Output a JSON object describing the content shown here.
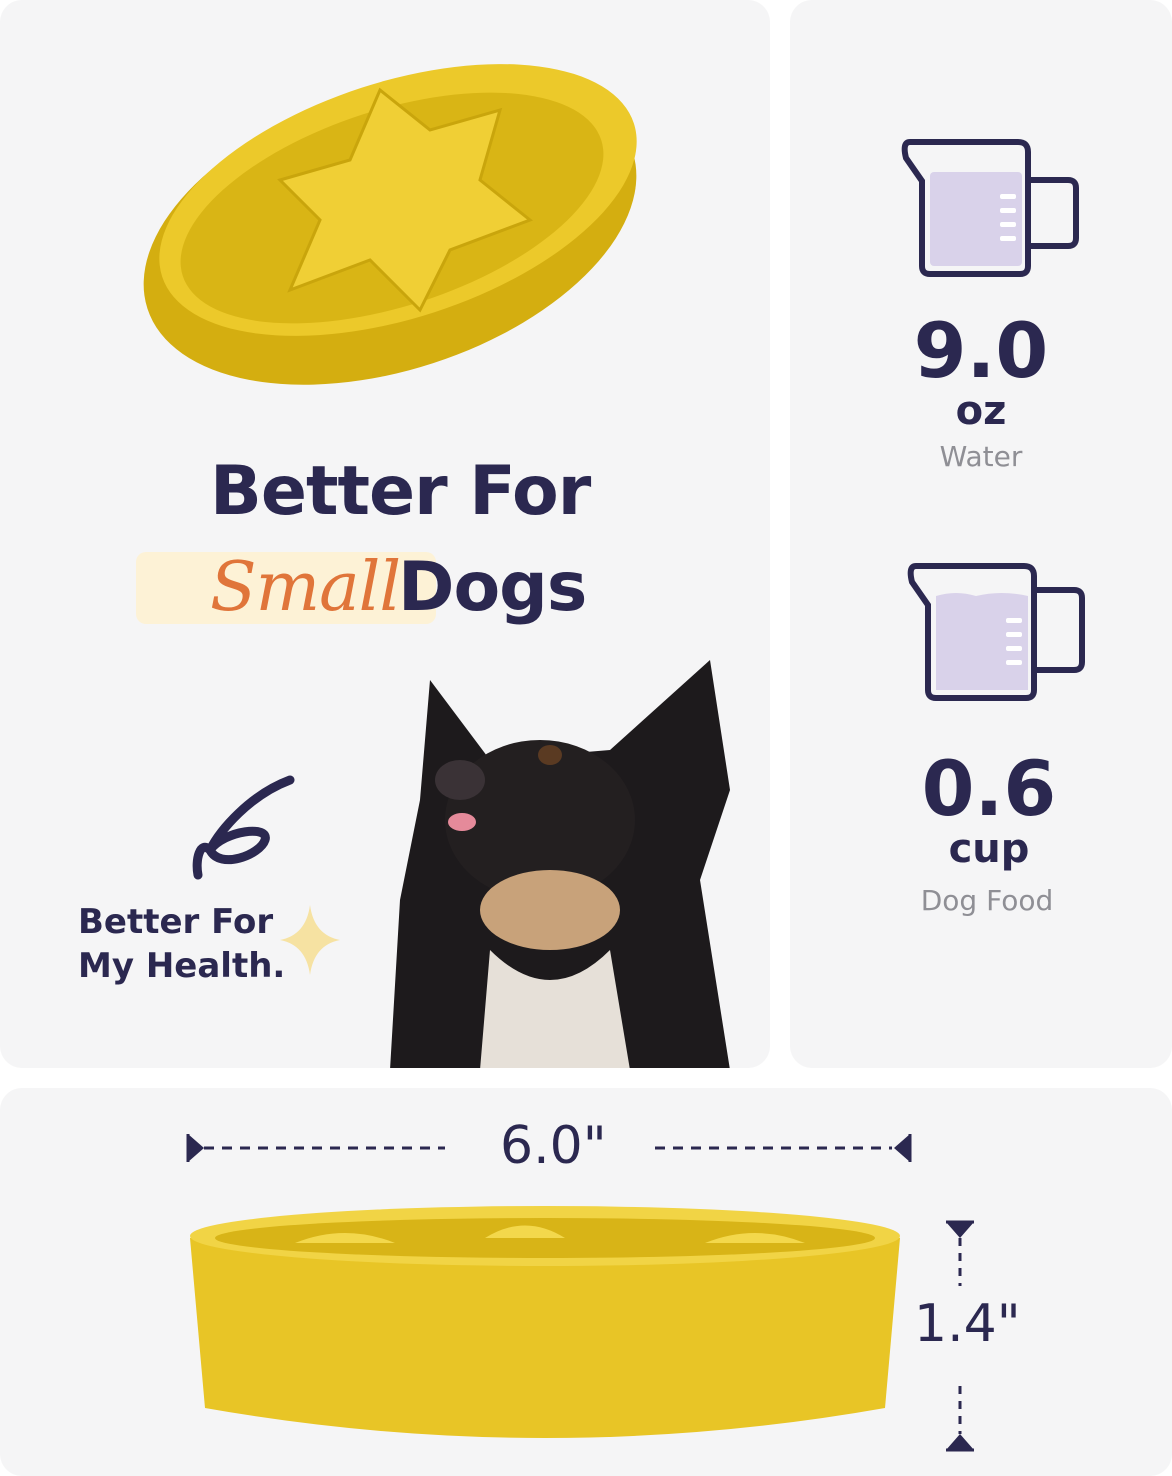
{
  "headline": {
    "line1": "Better For",
    "highlight": "Small",
    "line2_rest": "Dogs"
  },
  "callout": {
    "line1": "Better For",
    "line2": "My Health."
  },
  "capacity": [
    {
      "value": "9.0",
      "unit": "oz",
      "label": "Water",
      "icon": "measuring-cup-water-icon"
    },
    {
      "value": "0.6",
      "unit": "cup",
      "label": "Dog Food",
      "icon": "measuring-cup-food-icon"
    }
  ],
  "dimensions": {
    "width": "6.0\"",
    "height": "1.4\""
  },
  "colors": {
    "navy": "#2b2850",
    "accent_orange": "#e0753a",
    "bowl_yellow": "#e8c526",
    "lavender": "#d9d2ea",
    "highlight": "#fdf2d6"
  }
}
